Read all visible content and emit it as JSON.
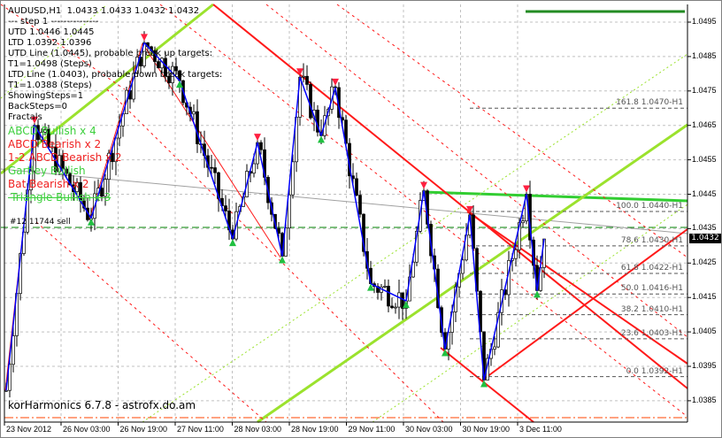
{
  "header": {
    "symbol": "AUDUSD,H1",
    "ohlc": "1.0433 1.0433 1.0432 1.0432"
  },
  "info": {
    "step": "---   step 1   ---------------",
    "utd": "UTD 1.0446  1.0445",
    "ltd": "LTD 1.0392  1.0396",
    "utd_line": "UTD Line (1.0445), probable break up targets:",
    "t1_up": "T1=1.0498 (Steps)",
    "ltd_line": "LTD Line (1.0403), probable down break targets:",
    "t1_down": "T1=1.0388 (Steps)",
    "showing_steps": "ShowingSteps=1",
    "back_steps": "BackSteps=0",
    "fractals": "Fractals"
  },
  "patterns": [
    {
      "text": "ABCD Bullish x 4",
      "color": "green"
    },
    {
      "text": "ABCD Bearish x 2",
      "color": "red"
    },
    {
      "text": "1-2 ABCD Bearish x 2",
      "color": "red"
    },
    {
      "text": "Gartley Bullish",
      "color": "green"
    },
    {
      "text": "Bat Bearish x 2",
      "color": "red"
    },
    {
      "text": "-Triangle Bullish x 3",
      "color": "green"
    }
  ],
  "order_label": "#12 11744 sell",
  "brand": "korHarmonics 6.7.8 - astrofx.do.am",
  "price_axis": [
    "1.0495",
    "1.0485",
    "1.0475",
    "1.0465",
    "1.0455",
    "1.0445",
    "1.0435",
    "1.0425",
    "1.0415",
    "1.0405",
    "1.0395",
    "1.0385"
  ],
  "current_price": "1.0432",
  "time_axis": [
    "23 Nov 2012",
    "26 Nov 03:00",
    "26 Nov 19:00",
    "27 Nov 11:00",
    "28 Nov 03:00",
    "28 Nov 19:00",
    "29 Nov 11:00",
    "30 Nov 03:00",
    "30 Nov 19:00",
    "3 Dec 11:00"
  ],
  "fib_levels": [
    {
      "label": "161.8 1.0470-H1",
      "price": 1.047
    },
    {
      "label": "100.0 1.0440-H1",
      "price": 1.044
    },
    {
      "label": "78.6 1.0430-H1",
      "price": 1.043
    },
    {
      "label": "61.8 1.0422-H1",
      "price": 1.0422
    },
    {
      "label": "50.0 1.0416-H1",
      "price": 1.0416
    },
    {
      "label": "38.2 1.0410-H1",
      "price": 1.041
    },
    {
      "label": "23.6 1.0403-H1",
      "price": 1.0403
    },
    {
      "label": "0.0 1.0392-H1",
      "price": 1.0392
    }
  ],
  "zigzag": [
    {
      "bar": 0,
      "price": 1.0388
    },
    {
      "bar": 8,
      "price": 1.0465
    },
    {
      "bar": 24,
      "price": 1.0438
    },
    {
      "bar": 39,
      "price": 1.0489
    },
    {
      "bar": 49,
      "price": 1.0478
    },
    {
      "bar": 64,
      "price": 1.0432
    },
    {
      "bar": 71,
      "price": 1.046
    },
    {
      "bar": 78,
      "price": 1.0427
    },
    {
      "bar": 83,
      "price": 1.0479
    },
    {
      "bar": 89,
      "price": 1.0462
    },
    {
      "bar": 93,
      "price": 1.0476
    },
    {
      "bar": 103,
      "price": 1.0419
    },
    {
      "bar": 113,
      "price": 1.0414
    },
    {
      "bar": 118,
      "price": 1.0446
    },
    {
      "bar": 124,
      "price": 1.04
    },
    {
      "bar": 131,
      "price": 1.0439
    },
    {
      "bar": 135,
      "price": 1.0391
    },
    {
      "bar": 147,
      "price": 1.0445
    },
    {
      "bar": 150,
      "price": 1.0417
    },
    {
      "bar": 152,
      "price": 1.0432
    }
  ],
  "colors": {
    "bull_line": "#9be22d",
    "bear_line": "#ff1a1a",
    "utd": "#32cd32",
    "zigzag": "#0000ff"
  }
}
